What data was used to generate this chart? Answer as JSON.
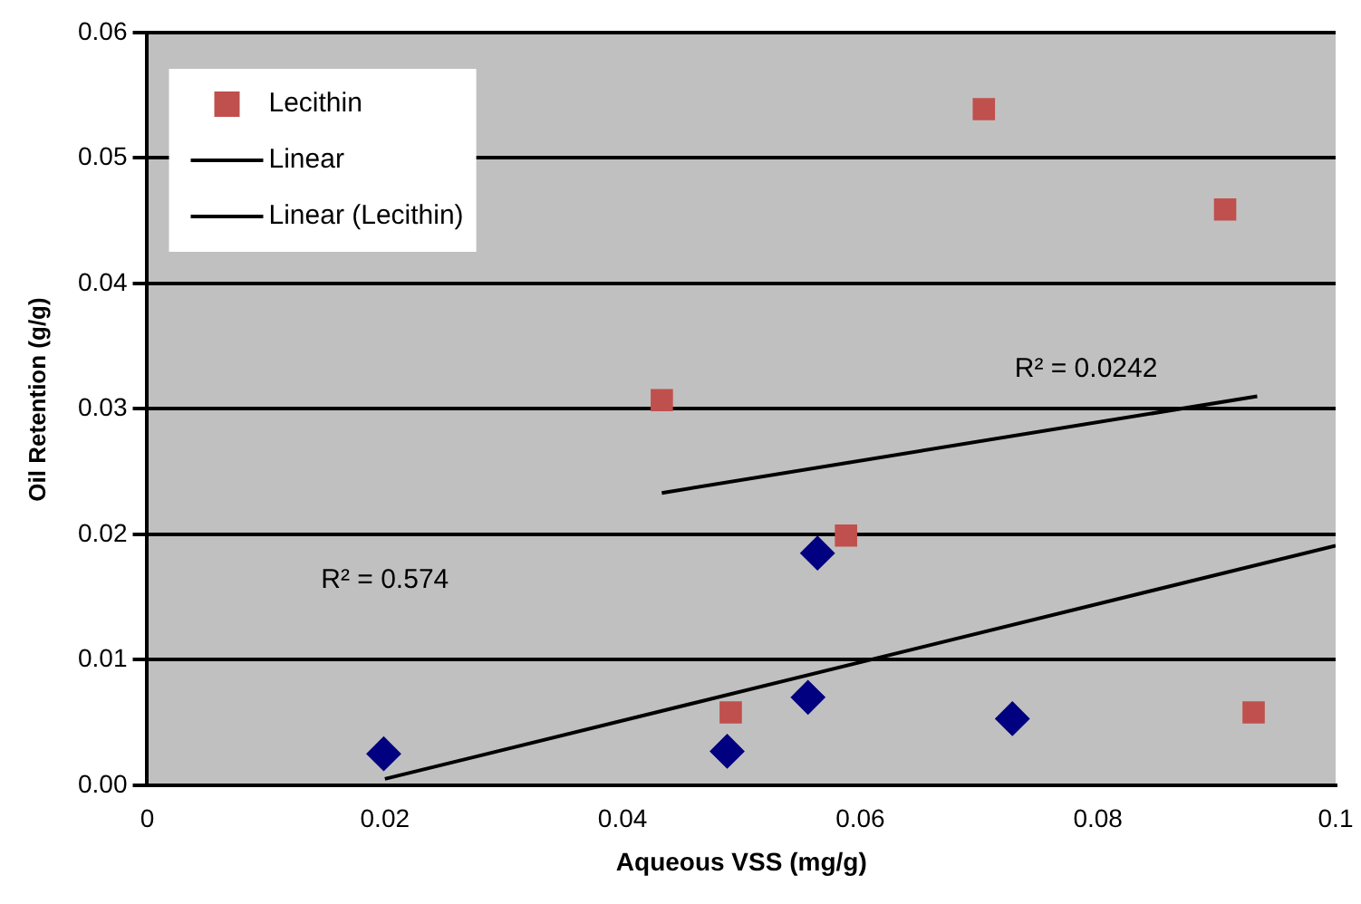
{
  "chart_data": {
    "type": "scatter",
    "xlabel": "Aqueous VSS (mg/g)",
    "ylabel": "Oil Retention (g/g)",
    "xlim": [
      0,
      0.1
    ],
    "xticks": [
      0,
      0.02,
      0.04,
      0.06,
      0.08,
      0.1
    ],
    "ylim": [
      0,
      0.06
    ],
    "yticks": [
      {
        "value": 0,
        "label": "0.00"
      },
      {
        "value": 0.01,
        "label": "0.01"
      },
      {
        "value": 0.02,
        "label": "0.02"
      },
      {
        "value": 0.03,
        "label": "0.03"
      },
      {
        "value": 0.04,
        "label": "0.04"
      },
      {
        "value": 0.05,
        "label": "0.05"
      },
      {
        "value": 0.06,
        "label": "0.06"
      }
    ],
    "grid": "y",
    "legend": "top left",
    "series": [
      {
        "marker": "diamond",
        "color": "#000080",
        "x": [
          0.0199,
          0.0488,
          0.0556,
          0.0564,
          0.0728
        ],
        "values": [
          0.0025,
          0.0027,
          0.007,
          0.0185,
          0.0053
        ]
      },
      {
        "name": "Lecithin",
        "marker": "square",
        "color": "#c0504d",
        "x": [
          0.0433,
          0.0491,
          0.0588,
          0.0704,
          0.0907,
          0.0931
        ],
        "values": [
          0.0307,
          0.0058,
          0.0199,
          0.0539,
          0.0459,
          0.0058
        ]
      },
      {
        "type": "line",
        "name": "Linear",
        "marker": "none",
        "color": "#000000",
        "x": [
          0.02,
          0.1
        ],
        "values": [
          0.0005,
          0.0191
        ]
      },
      {
        "type": "line",
        "name": "Linear (Lecithin)",
        "marker": "none",
        "color": "#000000",
        "x": [
          0.0433,
          0.0934
        ],
        "values": [
          0.0233,
          0.031
        ]
      }
    ],
    "annotations": [
      "R² = 0.0242",
      "R² = 0.574"
    ]
  }
}
